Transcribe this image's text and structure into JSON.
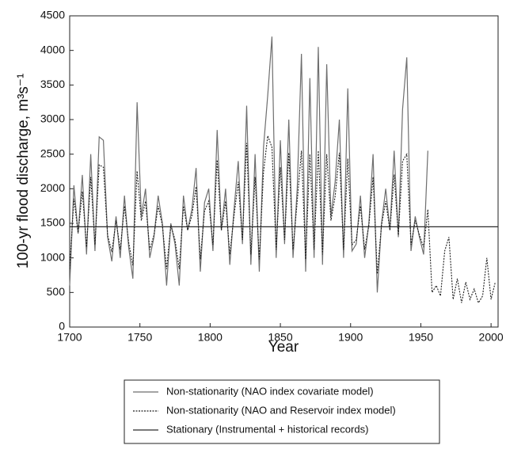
{
  "chart_data": {
    "type": "line",
    "xlabel": "Year",
    "ylabel": "100-yr flood discharge, m³s⁻¹",
    "xlim": [
      1700,
      2005
    ],
    "xticks": [
      1700,
      1750,
      1800,
      1850,
      1900,
      1950,
      2000
    ],
    "ylim": [
      0,
      4500
    ],
    "yticks": [
      0,
      500,
      1000,
      1500,
      2000,
      2500,
      3000,
      3500,
      4000,
      4500
    ],
    "series": [
      {
        "name": "Non-stationarity (NAO index covariate model)",
        "color": "#6e6e6e",
        "style": "solid",
        "x": [
          1700,
          1703,
          1706,
          1709,
          1712,
          1715,
          1718,
          1721,
          1724,
          1727,
          1730,
          1733,
          1736,
          1739,
          1742,
          1745,
          1748,
          1751,
          1754,
          1757,
          1760,
          1763,
          1766,
          1769,
          1772,
          1775,
          1778,
          1781,
          1784,
          1787,
          1790,
          1793,
          1796,
          1799,
          1802,
          1805,
          1808,
          1811,
          1814,
          1817,
          1820,
          1823,
          1826,
          1829,
          1832,
          1835,
          1838,
          1841,
          1844,
          1847,
          1850,
          1853,
          1856,
          1859,
          1862,
          1865,
          1868,
          1871,
          1874,
          1877,
          1880,
          1883,
          1886,
          1889,
          1892,
          1895,
          1898,
          1901,
          1904,
          1907,
          1910,
          1913,
          1916,
          1919,
          1922,
          1925,
          1928,
          1931,
          1934,
          1937,
          1940,
          1943,
          1946,
          1949,
          1952,
          1955
        ],
        "values": [
          600,
          2050,
          1350,
          2200,
          1050,
          2500,
          1100,
          2750,
          2700,
          1300,
          950,
          1600,
          1000,
          1900,
          1150,
          700,
          3250,
          1600,
          2000,
          1000,
          1300,
          1900,
          1500,
          600,
          1500,
          1200,
          600,
          1900,
          1400,
          1700,
          2300,
          800,
          1800,
          2000,
          1100,
          2850,
          1400,
          2000,
          900,
          1700,
          2400,
          1200,
          3200,
          900,
          2500,
          800,
          2600,
          3350,
          4200,
          1000,
          2700,
          1200,
          3000,
          1000,
          2000,
          3950,
          800,
          3600,
          1000,
          4050,
          900,
          3800,
          1600,
          2100,
          3000,
          1000,
          3450,
          1100,
          1200,
          1900,
          1000,
          1500,
          2500,
          500,
          1500,
          2000,
          1400,
          2550,
          1300,
          3150,
          3900,
          1100,
          1600,
          1300,
          1050,
          2550
        ]
      },
      {
        "name": "Non-stationarity (NAO and Reservoir index model)",
        "color": "#1e1e1e",
        "style": "dotted",
        "x": [
          1700,
          1703,
          1706,
          1709,
          1712,
          1715,
          1718,
          1721,
          1724,
          1727,
          1730,
          1733,
          1736,
          1739,
          1742,
          1745,
          1748,
          1751,
          1754,
          1757,
          1760,
          1763,
          1766,
          1769,
          1772,
          1775,
          1778,
          1781,
          1784,
          1787,
          1790,
          1793,
          1796,
          1799,
          1802,
          1805,
          1808,
          1811,
          1814,
          1817,
          1820,
          1823,
          1826,
          1829,
          1832,
          1835,
          1838,
          1841,
          1844,
          1847,
          1850,
          1853,
          1856,
          1859,
          1862,
          1865,
          1868,
          1871,
          1874,
          1877,
          1880,
          1883,
          1886,
          1889,
          1892,
          1895,
          1898,
          1901,
          1904,
          1907,
          1910,
          1913,
          1916,
          1919,
          1922,
          1925,
          1928,
          1931,
          1934,
          1937,
          1940,
          1943,
          1946,
          1949,
          1952,
          1955,
          1958,
          1961,
          1964,
          1967,
          1970,
          1973,
          1976,
          1979,
          1982,
          1985,
          1988,
          1991,
          1994,
          1997,
          2000,
          2003
        ],
        "values": [
          840,
          1855,
          1365,
          1960,
          1155,
          2170,
          1190,
          2345,
          2310,
          1330,
          1085,
          1540,
          1120,
          1750,
          1225,
          890,
          2255,
          1540,
          1820,
          1120,
          1330,
          1750,
          1470,
          840,
          1470,
          1260,
          840,
          1750,
          1400,
          1610,
          2030,
          980,
          1680,
          1820,
          1190,
          2415,
          1400,
          1820,
          1050,
          1610,
          2100,
          1260,
          2660,
          1050,
          2170,
          980,
          2240,
          2765,
          2600,
          1120,
          2310,
          1260,
          2520,
          1120,
          1820,
          2550,
          980,
          2500,
          1120,
          2550,
          1050,
          2500,
          1540,
          1890,
          2520,
          1120,
          2435,
          1190,
          1260,
          1750,
          1120,
          1470,
          2170,
          770,
          1470,
          1820,
          1400,
          2205,
          1330,
          2400,
          2500,
          1190,
          1540,
          1330,
          1155,
          1700,
          500,
          600,
          450,
          1100,
          1300,
          400,
          700,
          350,
          650,
          400,
          550,
          350,
          450,
          1000,
          400,
          650
        ]
      },
      {
        "name": "Stationary (Instrumental + historical records)",
        "color": "#2a2a2a",
        "style": "solid",
        "x": [
          1700,
          2005
        ],
        "values": [
          1450,
          1450
        ]
      }
    ]
  }
}
